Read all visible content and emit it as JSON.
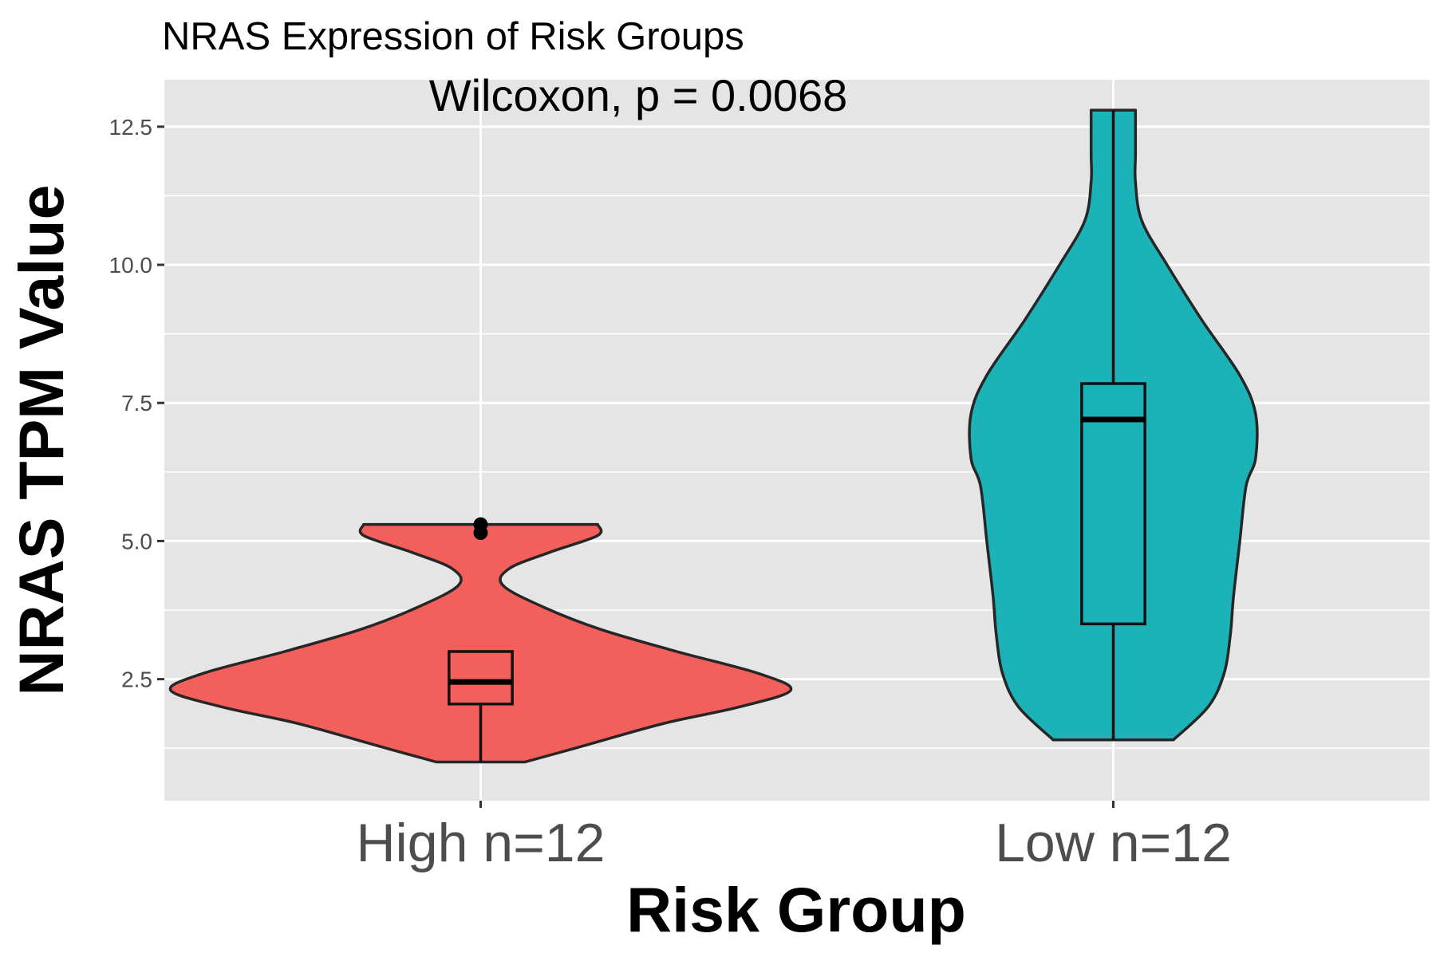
{
  "chart_data": {
    "type": "violin",
    "title": "NRAS Expression of Risk Groups",
    "annotation": "Wilcoxon, p = 0.0068",
    "xlabel": "Risk Group",
    "ylabel": "NRAS TPM Value",
    "categories": [
      "High n=12",
      "Low n=12"
    ],
    "y_ticks": [
      "2.5",
      "5.0",
      "7.5",
      "10.0",
      "12.5"
    ],
    "ylim": [
      0.3,
      13.35
    ],
    "grid": true,
    "colors": {
      "panel": "#e5e5e5",
      "grid": "#ffffff",
      "High n=12": "#f35f5b",
      "Low n=12": "#1bb3b7",
      "outline": "#262626"
    },
    "series": [
      {
        "group": "High n=12",
        "color": "#f35f5b",
        "violin_profile": [
          [
            1.0,
            0.14
          ],
          [
            1.3,
            0.33
          ],
          [
            1.7,
            0.58
          ],
          [
            2.0,
            0.82
          ],
          [
            2.3,
            0.98
          ],
          [
            2.6,
            0.88
          ],
          [
            3.0,
            0.62
          ],
          [
            3.4,
            0.38
          ],
          [
            3.8,
            0.2
          ],
          [
            4.2,
            0.07
          ],
          [
            4.5,
            0.09
          ],
          [
            4.8,
            0.22
          ],
          [
            5.1,
            0.37
          ],
          [
            5.3,
            0.37
          ]
        ],
        "box": {
          "min": 1.0,
          "q1": 2.05,
          "median": 2.45,
          "q3": 3.0,
          "max": 3.0
        },
        "outliers": [
          5.15,
          5.3
        ]
      },
      {
        "group": "Low n=12",
        "color": "#1bb3b7",
        "violin_profile": [
          [
            1.4,
            0.19
          ],
          [
            2.0,
            0.3
          ],
          [
            2.6,
            0.35
          ],
          [
            3.3,
            0.37
          ],
          [
            4.0,
            0.38
          ],
          [
            5.0,
            0.4
          ],
          [
            6.0,
            0.42
          ],
          [
            6.5,
            0.45
          ],
          [
            7.3,
            0.45
          ],
          [
            8.0,
            0.4
          ],
          [
            9.0,
            0.28
          ],
          [
            10.0,
            0.17
          ],
          [
            10.8,
            0.09
          ],
          [
            11.5,
            0.07
          ],
          [
            12.0,
            0.07
          ],
          [
            12.8,
            0.07
          ]
        ],
        "box": {
          "min": 1.4,
          "q1": 3.5,
          "median": 7.2,
          "q3": 7.85,
          "max": 12.8
        },
        "outliers": []
      }
    ]
  }
}
